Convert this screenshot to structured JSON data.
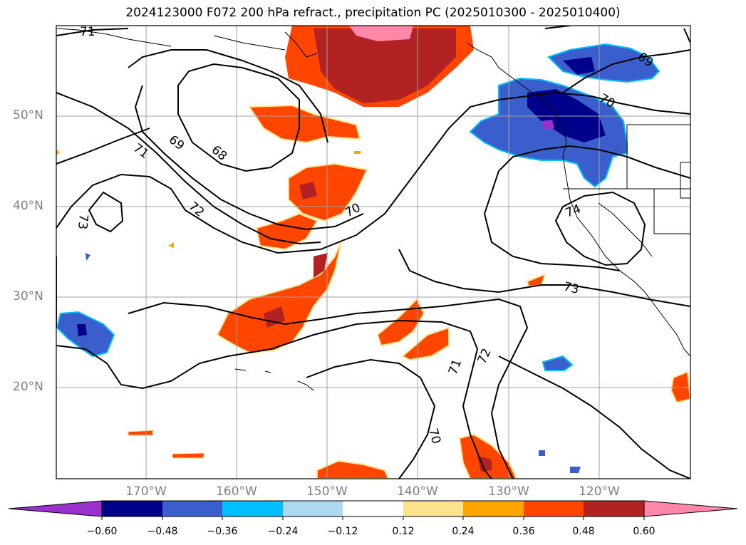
{
  "title": "2024123000 F072 200 hPa refract., precipitation PC (2025010300 - 2025010400)",
  "lat_labels": [
    "50°N",
    "40°N",
    "30°N",
    "20°N"
  ],
  "lon_labels": [
    "170°W",
    "160°W",
    "150°W",
    "140°W",
    "130°W",
    "120°W"
  ],
  "contour_labels": [
    "71",
    "69",
    "68",
    "71",
    "72",
    "70",
    "73",
    "69",
    "70",
    "74",
    "73",
    "71",
    "72",
    "70"
  ],
  "colorbar": {
    "tick_labels": [
      "−0.60",
      "−0.48",
      "−0.36",
      "−0.24",
      "−0.12",
      "0.12",
      "0.24",
      "0.36",
      "0.48",
      "0.60"
    ],
    "colors": [
      "#9932cc",
      "#00008b",
      "#3a5fcd",
      "#00bfff",
      "#add8f0",
      "#ffffff",
      "#ffe38c",
      "#ffa500",
      "#ff4500",
      "#b22222",
      "#ff88aa"
    ]
  },
  "colors": {
    "contour": "#000000",
    "grid": "#a0a0a0",
    "coast": "#000000"
  }
}
